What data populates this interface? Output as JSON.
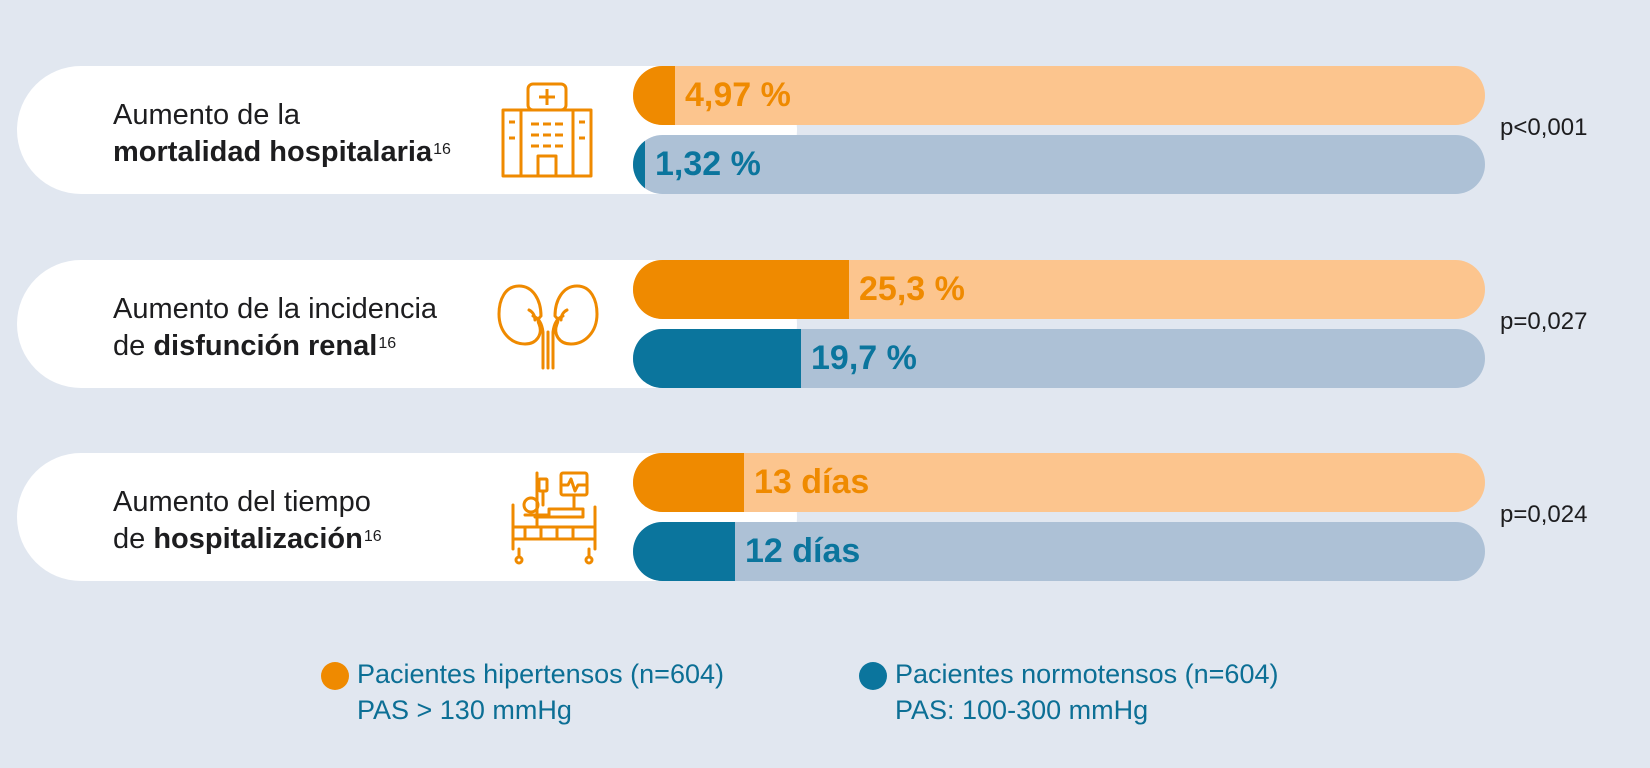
{
  "colors": {
    "hyper_light": "#fcc58e",
    "hyper_dark": "#ef8a00",
    "normo_light": "#adc1d6",
    "normo_dark": "#0b759d",
    "background": "#e1e7f0"
  },
  "chart_data": {
    "type": "bar",
    "orientation": "horizontal",
    "series": [
      {
        "name": "Pacientes hipertensos (n=604)",
        "sub": "PAS > 130 mmHg"
      },
      {
        "name": "Pacientes normotensos (n=604)",
        "sub": "PAS: 100-300 mmHg"
      }
    ],
    "rows": [
      {
        "label_line1": "Aumento de la",
        "label_prefix": "",
        "label_bold": "mortalidad hospitalaria",
        "ref": "16",
        "icon": "hospital-icon",
        "p_value": "p<0,001",
        "hyper_value": 4.97,
        "hyper_text": "4,97 %",
        "normo_value": 1.32,
        "normo_text": "1,32 %",
        "scale_max": 100
      },
      {
        "label_line1": "Aumento de la incidencia",
        "label_prefix": "de ",
        "label_bold": "disfunción renal",
        "ref": "16",
        "icon": "kidneys-icon",
        "p_value": "p=0,027",
        "hyper_value": 25.3,
        "hyper_text": "25,3 %",
        "normo_value": 19.7,
        "normo_text": "19,7 %",
        "scale_max": 100
      },
      {
        "label_line1": "Aumento del tiempo",
        "label_prefix": "de ",
        "label_bold": "hospitalización",
        "ref": "16",
        "icon": "hospital-bed-icon",
        "p_value": "p=0,024",
        "hyper_value": 13,
        "hyper_text": "13 días",
        "normo_value": 12,
        "normo_text": "12 días",
        "scale_max": 100
      }
    ]
  }
}
